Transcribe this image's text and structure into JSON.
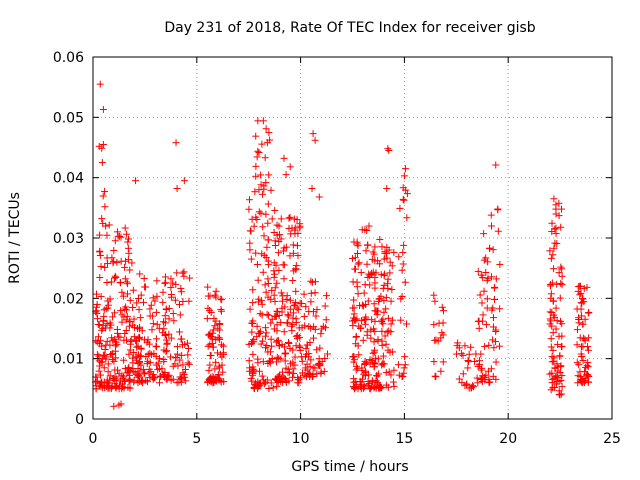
{
  "chart_data": {
    "type": "scatter",
    "title": "Day 231 of 2018, Rate Of TEC Index for receiver gisb",
    "xlabel": "GPS time / hours",
    "ylabel": "ROTI / TECUs",
    "xlim": [
      0,
      25
    ],
    "ylim": [
      0,
      0.06
    ],
    "xticks": [
      0,
      5,
      10,
      15,
      20,
      25
    ],
    "yticks": [
      0,
      0.01,
      0.02,
      0.03,
      0.04,
      0.05,
      0.06
    ],
    "xtick_labels": [
      "0",
      "5",
      "10",
      "15",
      "20",
      "25"
    ],
    "ytick_labels": [
      "0",
      "0.01",
      "0.02",
      "0.03",
      "0.04",
      "0.05",
      "0.06"
    ],
    "grid": true,
    "marker": "+",
    "color": "#ff0000",
    "series": [
      {
        "name": "ROTI",
        "clusters": [
          {
            "x0": 0.1,
            "x1": 0.9,
            "ylo": 0.005,
            "yhi": 0.028,
            "n": 95,
            "seed": 11
          },
          {
            "x0": 0.3,
            "x1": 0.8,
            "ylo": 0.03,
            "yhi": 0.046,
            "n": 10,
            "seed": 12
          },
          {
            "x0": 0.9,
            "x1": 1.8,
            "ylo": 0.005,
            "yhi": 0.032,
            "n": 110,
            "seed": 13
          },
          {
            "x0": 1.8,
            "x1": 2.6,
            "ylo": 0.006,
            "yhi": 0.026,
            "n": 70,
            "seed": 14
          },
          {
            "x0": 2.6,
            "x1": 3.6,
            "ylo": 0.006,
            "yhi": 0.024,
            "n": 75,
            "seed": 15
          },
          {
            "x0": 3.6,
            "x1": 4.7,
            "ylo": 0.006,
            "yhi": 0.025,
            "n": 60,
            "seed": 16
          },
          {
            "x0": 5.5,
            "x1": 6.3,
            "ylo": 0.006,
            "yhi": 0.022,
            "n": 85,
            "seed": 17
          },
          {
            "x0": 7.5,
            "x1": 8.9,
            "ylo": 0.005,
            "yhi": 0.038,
            "n": 150,
            "seed": 18
          },
          {
            "x0": 7.8,
            "x1": 8.6,
            "ylo": 0.038,
            "yhi": 0.05,
            "n": 20,
            "seed": 19
          },
          {
            "x0": 8.8,
            "x1": 10.0,
            "ylo": 0.006,
            "yhi": 0.034,
            "n": 130,
            "seed": 20
          },
          {
            "x0": 10.0,
            "x1": 11.3,
            "ylo": 0.007,
            "yhi": 0.024,
            "n": 70,
            "seed": 21
          },
          {
            "x0": 12.5,
            "x1": 13.5,
            "ylo": 0.005,
            "yhi": 0.032,
            "n": 120,
            "seed": 22
          },
          {
            "x0": 13.5,
            "x1": 14.5,
            "ylo": 0.005,
            "yhi": 0.03,
            "n": 110,
            "seed": 23
          },
          {
            "x0": 14.7,
            "x1": 15.2,
            "ylo": 0.007,
            "yhi": 0.04,
            "n": 25,
            "seed": 24
          },
          {
            "x0": 16.4,
            "x1": 16.9,
            "ylo": 0.007,
            "yhi": 0.023,
            "n": 18,
            "seed": 25
          },
          {
            "x0": 17.5,
            "x1": 18.5,
            "ylo": 0.005,
            "yhi": 0.017,
            "n": 25,
            "seed": 26
          },
          {
            "x0": 18.5,
            "x1": 19.6,
            "ylo": 0.006,
            "yhi": 0.035,
            "n": 70,
            "seed": 27
          },
          {
            "x0": 22.0,
            "x1": 22.6,
            "ylo": 0.004,
            "yhi": 0.036,
            "n": 90,
            "seed": 28
          },
          {
            "x0": 23.3,
            "x1": 23.9,
            "ylo": 0.006,
            "yhi": 0.023,
            "n": 65,
            "seed": 29
          }
        ],
        "points": [
          [
            0.35,
            0.0555
          ],
          [
            0.5,
            0.0513
          ],
          [
            0.3,
            0.0452
          ],
          [
            0.5,
            0.0455
          ],
          [
            0.45,
            0.0425
          ],
          [
            1.25,
            0.0023
          ],
          [
            1.35,
            0.0025
          ],
          [
            1.0,
            0.0021
          ],
          [
            2.05,
            0.0395
          ],
          [
            4.0,
            0.0458
          ],
          [
            4.4,
            0.0395
          ],
          [
            4.05,
            0.0382
          ],
          [
            8.4,
            0.0458
          ],
          [
            9.2,
            0.0432
          ],
          [
            9.5,
            0.0418
          ],
          [
            9.3,
            0.0405
          ],
          [
            10.6,
            0.0473
          ],
          [
            10.7,
            0.0462
          ],
          [
            10.55,
            0.0382
          ],
          [
            10.9,
            0.0368
          ],
          [
            14.2,
            0.0448
          ],
          [
            14.25,
            0.0445
          ],
          [
            14.15,
            0.0382
          ],
          [
            15.05,
            0.0415
          ],
          [
            15.0,
            0.0403
          ],
          [
            19.4,
            0.0421
          ],
          [
            19.5,
            0.0348
          ],
          [
            22.2,
            0.0365
          ],
          [
            22.3,
            0.0355
          ]
        ]
      }
    ]
  }
}
